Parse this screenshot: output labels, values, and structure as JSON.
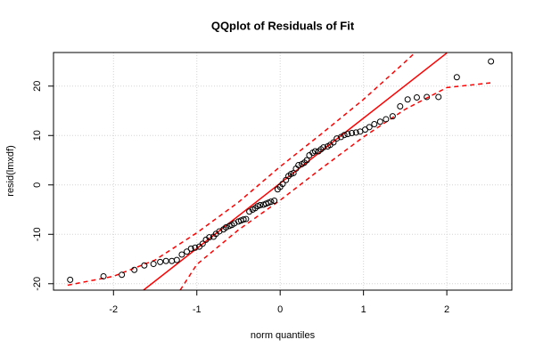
{
  "chart_data": {
    "type": "scatter",
    "title": "QQplot of Residuals of Fit",
    "xlabel": "norm quantiles",
    "ylabel": "resid(lmxdf)",
    "x": [
      -2.52,
      -2.12,
      -1.9,
      -1.75,
      -1.63,
      -1.52,
      -1.44,
      -1.37,
      -1.3,
      -1.24,
      -1.18,
      -1.12,
      -1.07,
      -1.02,
      -0.97,
      -0.93,
      -0.89,
      -0.85,
      -0.8,
      -0.77,
      -0.73,
      -0.68,
      -0.65,
      -0.61,
      -0.58,
      -0.55,
      -0.5,
      -0.47,
      -0.44,
      -0.41,
      -0.37,
      -0.33,
      -0.3,
      -0.27,
      -0.24,
      -0.2,
      -0.17,
      -0.14,
      -0.11,
      -0.07,
      -0.03,
      0,
      0.03,
      0.07,
      0.1,
      0.13,
      0.16,
      0.19,
      0.22,
      0.26,
      0.29,
      0.32,
      0.35,
      0.39,
      0.42,
      0.46,
      0.49,
      0.52,
      0.57,
      0.6,
      0.64,
      0.68,
      0.73,
      0.77,
      0.81,
      0.86,
      0.91,
      0.96,
      1.02,
      1.07,
      1.13,
      1.2,
      1.27,
      1.35,
      1.44,
      1.53,
      1.64,
      1.76,
      1.9,
      2.12,
      2.53
    ],
    "values": [
      -19.2,
      -18.5,
      -18.2,
      -17.2,
      -16.3,
      -16.0,
      -15.6,
      -15.4,
      -15.4,
      -15.2,
      -14.1,
      -13.5,
      -12.9,
      -12.7,
      -12.5,
      -11.9,
      -11.1,
      -10.6,
      -10.5,
      -9.9,
      -9.4,
      -9.0,
      -8.6,
      -8.3,
      -8.1,
      -7.8,
      -7.4,
      -7.2,
      -7.0,
      -6.9,
      -5.4,
      -5.0,
      -4.7,
      -4.3,
      -4.1,
      -4.0,
      -3.8,
      -3.6,
      -3.4,
      -3.2,
      -0.9,
      -0.4,
      0.2,
      1.0,
      1.8,
      2.2,
      2.4,
      3.3,
      4.0,
      4.2,
      4.5,
      5.0,
      6.0,
      6.5,
      6.8,
      6.8,
      7.2,
      7.6,
      7.8,
      8.1,
      8.6,
      9.4,
      9.7,
      10.1,
      10.3,
      10.5,
      10.6,
      10.8,
      11.2,
      11.7,
      12.3,
      12.8,
      13.3,
      13.9,
      15.9,
      17.3,
      17.7,
      17.8,
      17.8,
      21.8,
      25.0
    ],
    "color": "#000000",
    "lines": [
      {
        "color": "#ff0000",
        "dashed": false,
        "x": [
          -1.64,
          2.0
        ],
        "values": [
          -21.3,
          26.7
        ]
      },
      {
        "color": "#ff0000",
        "dashed": true,
        "x": [
          -2.55,
          -2.0,
          -1.5,
          -1.0,
          -0.5,
          0,
          0.5,
          1.0,
          1.5,
          1.62
        ],
        "values": [
          -20.3,
          -18.5,
          -15.2,
          -9.7,
          -3.5,
          3.7,
          10.4,
          17.3,
          24.9,
          26.8
        ]
      },
      {
        "color": "#ff0000",
        "dashed": true,
        "x": [
          -1.2,
          -1.0,
          -0.5,
          0,
          0.5,
          1.0,
          1.5,
          2.0,
          2.55
        ],
        "values": [
          -21.3,
          -16.1,
          -9.1,
          -3.1,
          3.4,
          9.7,
          15.3,
          19.7,
          20.7
        ]
      }
    ],
    "xlim": [
      -2.72,
      2.78
    ],
    "ylim": [
      -21.3,
      26.8
    ],
    "xticks": [
      -2,
      -1,
      0,
      1,
      2
    ],
    "yticks": [
      -20,
      -10,
      0,
      10,
      20
    ],
    "grid": true
  }
}
